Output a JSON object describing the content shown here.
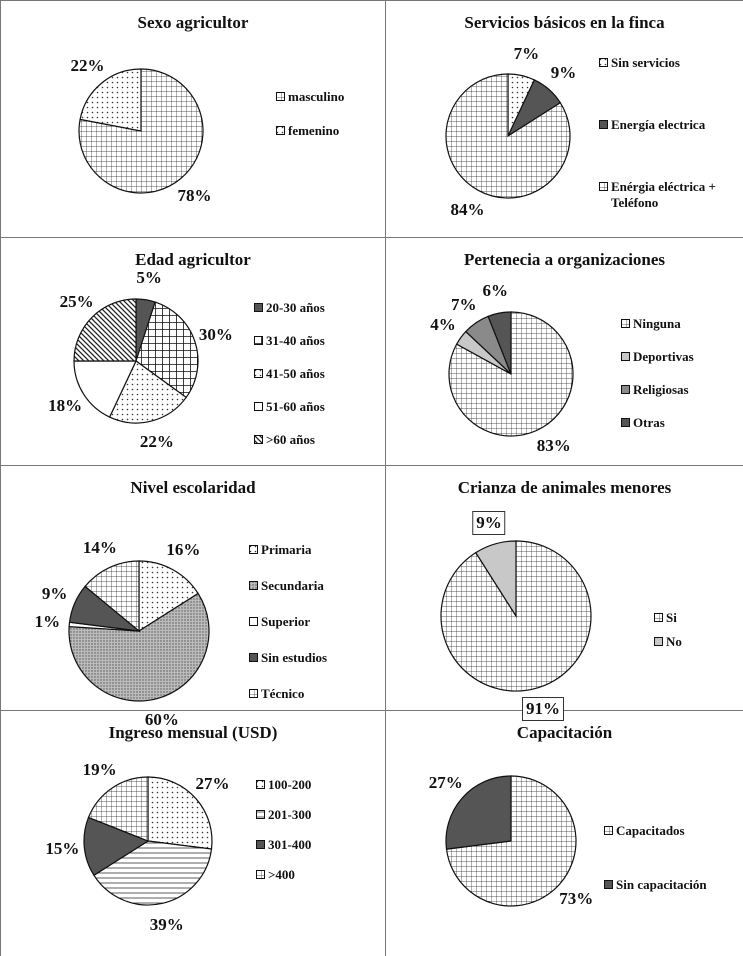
{
  "chart_data": [
    {
      "type": "pie",
      "title": "Sexo agricultor",
      "categories": [
        "masculino",
        "femenino"
      ],
      "values": [
        78,
        22
      ],
      "value_labels": [
        "78%",
        "22%"
      ],
      "colors": [
        "#222222",
        "#333333"
      ],
      "patterns": [
        "grid",
        "dots"
      ]
    },
    {
      "type": "pie",
      "title": "Servicios básicos en la finca",
      "categories": [
        "Sin servicios",
        "Energía electrica",
        "Enérgia eléctrica + Teléfono"
      ],
      "values": [
        7,
        9,
        84
      ],
      "value_labels": [
        "7%",
        "9%",
        "84%"
      ],
      "colors": [
        "#333333",
        "#555555",
        "#222222"
      ],
      "patterns": [
        "dots",
        "solid",
        "grid"
      ]
    },
    {
      "type": "pie",
      "title": "Edad agricultor",
      "categories": [
        "20-30 años",
        "31-40  años",
        "41-50 años",
        "51-60  años",
        ">60 años"
      ],
      "values": [
        5,
        30,
        22,
        18,
        25
      ],
      "value_labels": [
        "5%",
        "30%",
        "22%",
        "18%",
        "25%"
      ],
      "colors": [
        "#555555",
        "#111111",
        "#333333",
        "#ffffff",
        "#222222"
      ],
      "patterns": [
        "solid",
        "bold-grid",
        "dots",
        "solid",
        "diag"
      ]
    },
    {
      "type": "pie",
      "title": "Pertenecia a organizaciones",
      "categories": [
        "Ninguna",
        "Deportivas",
        "Religiosas",
        "Otras"
      ],
      "values": [
        83,
        4,
        7,
        6
      ],
      "value_labels": [
        "83%",
        "4%",
        "7%",
        "6%"
      ],
      "colors": [
        "#222222",
        "#c8c8c8",
        "#8a8a8a",
        "#555555"
      ],
      "patterns": [
        "grid",
        "solid",
        "solid",
        "solid"
      ]
    },
    {
      "type": "pie",
      "title": "Nivel escolaridad",
      "categories": [
        "Primaria",
        "Secundaria",
        "Superior",
        "Sin estudios",
        "Técnico"
      ],
      "values": [
        16,
        60,
        1,
        9,
        14
      ],
      "value_labels": [
        "16%",
        "60%",
        "1%",
        "9%",
        "14%"
      ],
      "colors": [
        "#333333",
        "#555555",
        "#ffffff",
        "#555555",
        "#222222"
      ],
      "patterns": [
        "dots",
        "dense-dots",
        "solid",
        "solid",
        "grid"
      ]
    },
    {
      "type": "pie",
      "title": "Crianza de animales menores",
      "categories": [
        "Si",
        "No"
      ],
      "values": [
        91,
        9
      ],
      "value_labels": [
        "91%",
        "9%"
      ],
      "colors": [
        "#222222",
        "#c8c8c8"
      ],
      "patterns": [
        "grid",
        "solid"
      ],
      "label_box": true
    },
    {
      "type": "pie",
      "title": "Ingreso mensual (USD)",
      "categories": [
        "100-200",
        "201-300",
        "301-400",
        ">400"
      ],
      "values": [
        27,
        39,
        15,
        19
      ],
      "value_labels": [
        "27%",
        "39%",
        "15%",
        "19%"
      ],
      "colors": [
        "#333333",
        "#333333",
        "#555555",
        "#222222"
      ],
      "patterns": [
        "dots",
        "hlines",
        "solid",
        "grid"
      ]
    },
    {
      "type": "pie",
      "title": "Capacitación",
      "categories": [
        "Capacitados",
        "Sin capacitación"
      ],
      "values": [
        73,
        27
      ],
      "value_labels": [
        "73%",
        "27%"
      ],
      "colors": [
        "#222222",
        "#555555"
      ],
      "patterns": [
        "grid",
        "solid"
      ]
    }
  ]
}
